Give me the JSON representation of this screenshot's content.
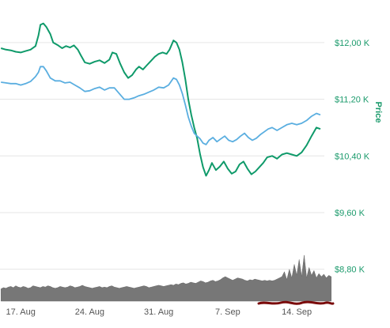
{
  "chart_data": {
    "type": "line",
    "ylabel": "Price",
    "y_ticks": [
      {
        "value": 12000,
        "label": "$12,00 K"
      },
      {
        "value": 11200,
        "label": "$11,20 K"
      },
      {
        "value": 10400,
        "label": "$10,40 K"
      },
      {
        "value": 9600,
        "label": "$9,60 K"
      },
      {
        "value": 8800,
        "label": "$8,80 K"
      }
    ],
    "ylim": [
      8350,
      12400
    ],
    "x_ticks": [
      {
        "value": 17,
        "label": "17. Aug"
      },
      {
        "value": 24,
        "label": "24. Aug"
      },
      {
        "value": 31,
        "label": "31. Aug"
      },
      {
        "value": 38,
        "label": "7. Sep"
      },
      {
        "value": 45,
        "label": "14. Sep"
      }
    ],
    "xlim": [
      14.9,
      47.8
    ],
    "grid": true,
    "colors": {
      "series_a": "#0f9a6a",
      "series_b": "#5aaee0",
      "volume": "#777777",
      "axis_text": "#1a9a6b",
      "scribble": "#7a0a0a"
    },
    "series": [
      {
        "values": [
          [
            15.0,
            11.92
          ],
          [
            15.5,
            11.9
          ],
          [
            16.0,
            11.89
          ],
          [
            16.5,
            11.87
          ],
          [
            17.0,
            11.86
          ],
          [
            17.5,
            11.88
          ],
          [
            18.0,
            11.9
          ],
          [
            18.5,
            11.95
          ],
          [
            18.8,
            12.1
          ],
          [
            19.0,
            12.25
          ],
          [
            19.3,
            12.27
          ],
          [
            19.6,
            12.22
          ],
          [
            20.0,
            12.12
          ],
          [
            20.3,
            12.0
          ],
          [
            20.8,
            11.96
          ],
          [
            21.2,
            11.92
          ],
          [
            21.6,
            11.95
          ],
          [
            22.0,
            11.93
          ],
          [
            22.4,
            11.96
          ],
          [
            22.8,
            11.9
          ],
          [
            23.1,
            11.82
          ],
          [
            23.5,
            11.72
          ],
          [
            24.0,
            11.7
          ],
          [
            24.5,
            11.73
          ],
          [
            25.0,
            11.75
          ],
          [
            25.5,
            11.71
          ],
          [
            26.0,
            11.76
          ],
          [
            26.3,
            11.86
          ],
          [
            26.7,
            11.84
          ],
          [
            27.1,
            11.7
          ],
          [
            27.5,
            11.58
          ],
          [
            27.9,
            11.5
          ],
          [
            28.3,
            11.54
          ],
          [
            28.7,
            11.62
          ],
          [
            29.0,
            11.66
          ],
          [
            29.4,
            11.62
          ],
          [
            29.8,
            11.68
          ],
          [
            30.2,
            11.74
          ],
          [
            30.6,
            11.8
          ],
          [
            31.0,
            11.84
          ],
          [
            31.4,
            11.86
          ],
          [
            31.8,
            11.84
          ],
          [
            32.1,
            11.9
          ],
          [
            32.5,
            12.03
          ],
          [
            32.8,
            12.0
          ],
          [
            33.1,
            11.9
          ],
          [
            33.4,
            11.72
          ],
          [
            33.7,
            11.48
          ],
          [
            34.0,
            11.2
          ],
          [
            34.3,
            10.98
          ],
          [
            34.6,
            10.8
          ],
          [
            34.9,
            10.65
          ],
          [
            35.2,
            10.42
          ],
          [
            35.5,
            10.24
          ],
          [
            35.8,
            10.12
          ],
          [
            36.1,
            10.2
          ],
          [
            36.4,
            10.3
          ],
          [
            36.8,
            10.2
          ],
          [
            37.2,
            10.25
          ],
          [
            37.6,
            10.32
          ],
          [
            38.0,
            10.22
          ],
          [
            38.4,
            10.15
          ],
          [
            38.8,
            10.18
          ],
          [
            39.2,
            10.28
          ],
          [
            39.6,
            10.32
          ],
          [
            40.0,
            10.22
          ],
          [
            40.4,
            10.14
          ],
          [
            40.8,
            10.18
          ],
          [
            41.2,
            10.24
          ],
          [
            41.6,
            10.3
          ],
          [
            42.0,
            10.38
          ],
          [
            42.5,
            10.4
          ],
          [
            43.0,
            10.36
          ],
          [
            43.5,
            10.42
          ],
          [
            44.0,
            10.44
          ],
          [
            44.5,
            10.42
          ],
          [
            45.0,
            10.4
          ],
          [
            45.5,
            10.45
          ],
          [
            46.0,
            10.55
          ],
          [
            46.5,
            10.68
          ],
          [
            47.0,
            10.8
          ],
          [
            47.4,
            10.78
          ]
        ]
      },
      {
        "values": [
          [
            15.0,
            11.44
          ],
          [
            15.5,
            11.43
          ],
          [
            16.0,
            11.42
          ],
          [
            16.5,
            11.42
          ],
          [
            17.0,
            11.4
          ],
          [
            17.5,
            11.42
          ],
          [
            18.0,
            11.45
          ],
          [
            18.5,
            11.52
          ],
          [
            18.8,
            11.58
          ],
          [
            19.0,
            11.66
          ],
          [
            19.3,
            11.66
          ],
          [
            19.6,
            11.6
          ],
          [
            20.0,
            11.5
          ],
          [
            20.5,
            11.46
          ],
          [
            21.0,
            11.46
          ],
          [
            21.5,
            11.43
          ],
          [
            22.0,
            11.44
          ],
          [
            22.5,
            11.4
          ],
          [
            23.0,
            11.36
          ],
          [
            23.5,
            11.31
          ],
          [
            24.0,
            11.32
          ],
          [
            24.5,
            11.35
          ],
          [
            25.0,
            11.37
          ],
          [
            25.5,
            11.33
          ],
          [
            26.0,
            11.36
          ],
          [
            26.5,
            11.36
          ],
          [
            27.0,
            11.28
          ],
          [
            27.5,
            11.2
          ],
          [
            28.0,
            11.2
          ],
          [
            28.5,
            11.22
          ],
          [
            29.0,
            11.25
          ],
          [
            29.5,
            11.27
          ],
          [
            30.0,
            11.3
          ],
          [
            30.5,
            11.33
          ],
          [
            31.0,
            11.37
          ],
          [
            31.5,
            11.36
          ],
          [
            32.0,
            11.4
          ],
          [
            32.5,
            11.5
          ],
          [
            32.8,
            11.48
          ],
          [
            33.1,
            11.4
          ],
          [
            33.4,
            11.28
          ],
          [
            33.7,
            11.12
          ],
          [
            34.0,
            10.95
          ],
          [
            34.3,
            10.82
          ],
          [
            34.6,
            10.72
          ],
          [
            34.9,
            10.68
          ],
          [
            35.2,
            10.64
          ],
          [
            35.5,
            10.58
          ],
          [
            35.8,
            10.56
          ],
          [
            36.1,
            10.62
          ],
          [
            36.5,
            10.66
          ],
          [
            36.9,
            10.6
          ],
          [
            37.3,
            10.64
          ],
          [
            37.7,
            10.68
          ],
          [
            38.1,
            10.62
          ],
          [
            38.5,
            10.6
          ],
          [
            38.9,
            10.63
          ],
          [
            39.3,
            10.68
          ],
          [
            39.7,
            10.72
          ],
          [
            40.1,
            10.66
          ],
          [
            40.5,
            10.62
          ],
          [
            40.9,
            10.65
          ],
          [
            41.3,
            10.7
          ],
          [
            41.7,
            10.74
          ],
          [
            42.1,
            10.78
          ],
          [
            42.5,
            10.8
          ],
          [
            43.0,
            10.76
          ],
          [
            43.5,
            10.8
          ],
          [
            44.0,
            10.84
          ],
          [
            44.5,
            10.86
          ],
          [
            45.0,
            10.84
          ],
          [
            45.5,
            10.86
          ],
          [
            46.0,
            10.9
          ],
          [
            46.5,
            10.96
          ],
          [
            47.0,
            11.0
          ],
          [
            47.4,
            10.98
          ]
        ]
      }
    ],
    "volume": {
      "start": 15.0,
      "step": 0.25,
      "values": [
        20,
        22,
        21,
        23,
        24,
        22,
        25,
        23,
        22,
        24,
        23,
        21,
        22,
        25,
        24,
        23,
        22,
        24,
        23,
        25,
        24,
        22,
        21,
        22,
        24,
        23,
        22,
        23,
        25,
        24,
        22,
        23,
        24,
        26,
        24,
        23,
        22,
        21,
        22,
        23,
        24,
        22,
        23,
        22,
        24,
        25,
        23,
        22,
        21,
        22,
        23,
        24,
        23,
        22,
        21,
        22,
        23,
        24,
        25,
        24,
        22,
        23,
        24,
        25,
        26,
        25,
        24,
        25,
        26,
        27,
        26,
        28,
        27,
        29,
        30,
        28,
        29,
        31,
        30,
        29,
        31,
        33,
        32,
        30,
        31,
        33,
        34,
        32,
        33,
        35,
        38,
        40,
        38,
        36,
        34,
        36,
        38,
        37,
        36,
        34,
        33,
        35,
        34,
        36,
        35,
        34,
        33,
        34,
        33,
        34,
        33,
        34,
        36,
        38,
        40,
        48,
        35,
        52,
        38,
        60,
        42,
        68,
        40,
        75,
        38,
        55,
        42,
        50,
        38,
        45,
        40,
        44,
        38,
        42,
        40
      ]
    }
  }
}
